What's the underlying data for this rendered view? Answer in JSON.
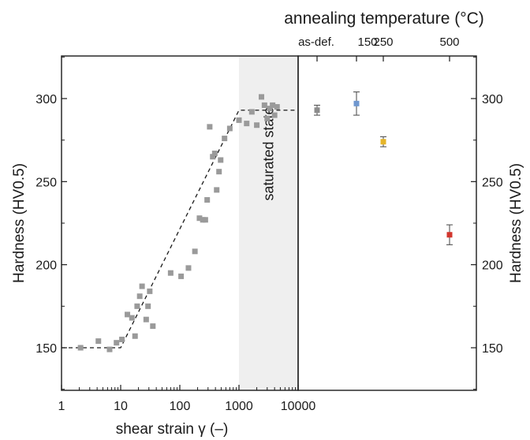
{
  "chart_data": {
    "type": "scatter",
    "top_axis": {
      "label": "annealing temperature (°C)",
      "tick_labels": [
        "as-def.",
        "150",
        "250",
        "500"
      ]
    },
    "left_panel": {
      "xlabel": "shear strain γ (–)",
      "ylabel": "Hardness (HV0.5)",
      "xscale": "log",
      "xlim": [
        1,
        10000
      ],
      "ylim": [
        125,
        325
      ],
      "x_ticks": [
        1,
        10,
        100,
        1000,
        10000
      ],
      "x_tick_labels": [
        "1",
        "10",
        "100",
        "1000",
        "10000"
      ],
      "y_ticks": [
        150,
        200,
        250,
        300
      ],
      "y_tick_labels": [
        "150",
        "200",
        "250",
        "300"
      ],
      "shaded_region": {
        "x_from": 1000,
        "x_to": 10000,
        "label": "saturated state",
        "color": "#efefef"
      },
      "marker_color": "#9a9a9a",
      "points": [
        [
          2.1,
          150
        ],
        [
          4.2,
          154
        ],
        [
          6.5,
          149
        ],
        [
          8.5,
          153
        ],
        [
          10.5,
          155
        ],
        [
          13,
          170
        ],
        [
          15.5,
          168
        ],
        [
          17.5,
          157
        ],
        [
          19,
          175
        ],
        [
          21,
          181
        ],
        [
          23,
          187
        ],
        [
          27,
          167
        ],
        [
          29,
          175
        ],
        [
          31,
          184
        ],
        [
          35,
          163
        ],
        [
          70,
          195
        ],
        [
          105,
          193
        ],
        [
          140,
          198
        ],
        [
          180,
          208
        ],
        [
          215,
          228
        ],
        [
          245,
          227
        ],
        [
          270,
          227
        ],
        [
          290,
          239
        ],
        [
          320,
          283
        ],
        [
          360,
          265
        ],
        [
          390,
          267
        ],
        [
          420,
          245
        ],
        [
          460,
          256
        ],
        [
          490,
          263
        ],
        [
          570,
          276
        ],
        [
          700,
          282
        ],
        [
          1000,
          287
        ],
        [
          1350,
          285
        ],
        [
          1650,
          292
        ],
        [
          2000,
          284
        ],
        [
          2400,
          301
        ],
        [
          2700,
          296
        ],
        [
          3000,
          288
        ],
        [
          3300,
          294
        ],
        [
          3700,
          296
        ],
        [
          4000,
          290
        ],
        [
          4400,
          295
        ]
      ],
      "trend_line": [
        [
          1,
          150
        ],
        [
          10,
          150
        ],
        [
          1000,
          293
        ],
        [
          10000,
          293
        ]
      ]
    },
    "right_panel": {
      "ylabel": "Hardness (HV0.5)",
      "ylim": [
        125,
        325
      ],
      "y_ticks": [
        150,
        200,
        250,
        300
      ],
      "y_tick_labels": [
        "150",
        "200",
        "250",
        "300"
      ],
      "points": [
        {
          "label": "as-def.",
          "value": 293,
          "error": 3,
          "color": "#8c8c8c"
        },
        {
          "label": "150",
          "value": 297,
          "error": 7,
          "color": "#6f97cf"
        },
        {
          "label": "250",
          "value": 274,
          "error": 3,
          "color": "#e5b52a"
        },
        {
          "label": "500",
          "value": 218,
          "error": 6,
          "color": "#d2362d"
        }
      ]
    }
  }
}
